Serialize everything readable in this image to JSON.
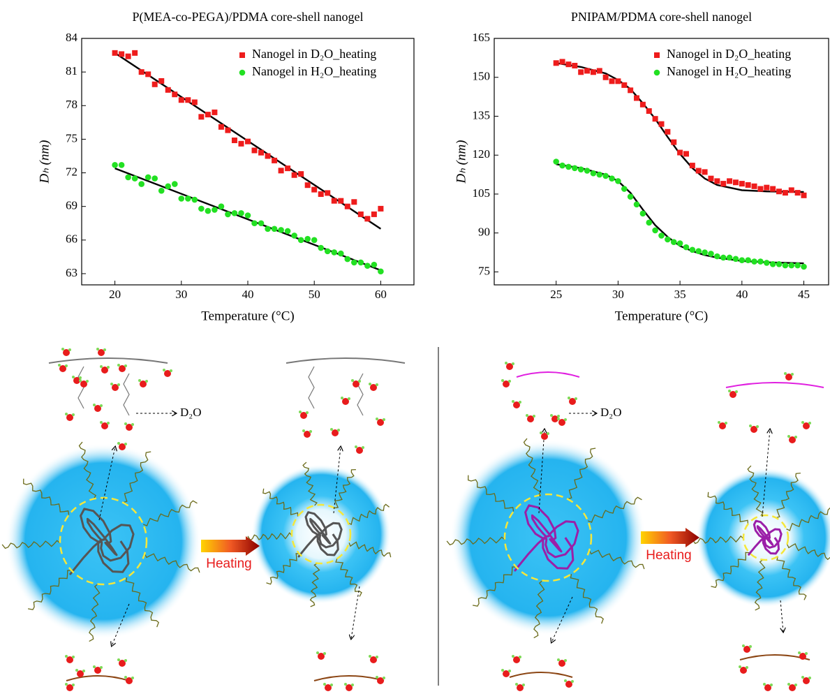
{
  "chart_data": [
    {
      "type": "scatter",
      "title": "P(MEA-co-PEGA)/PDMA core-shell nanogel",
      "x_label": "Temperature (°C)",
      "y_label": "Dₕ (nm)",
      "xlim": [
        15,
        65
      ],
      "xticks": [
        20,
        30,
        40,
        50,
        60
      ],
      "ylim": [
        62,
        84
      ],
      "yticks": [
        63,
        66,
        69,
        72,
        75,
        78,
        81,
        84
      ],
      "legend": "top-right",
      "series": [
        {
          "name": "Nanogel in D₂O_heating",
          "color": "#ee1c1c",
          "marker": "square",
          "x": [
            20,
            21,
            22,
            23,
            24,
            25,
            26,
            27,
            28,
            29,
            30,
            31,
            32,
            33,
            34,
            35,
            36,
            37,
            38,
            39,
            40,
            41,
            42,
            43,
            44,
            45,
            46,
            47,
            48,
            49,
            50,
            51,
            52,
            53,
            54,
            55,
            56,
            57,
            58,
            59,
            60
          ],
          "values": [
            82.7,
            82.6,
            82.4,
            82.7,
            81.0,
            80.8,
            79.9,
            80.2,
            79.4,
            79.0,
            78.5,
            78.5,
            78.3,
            77.0,
            77.2,
            77.4,
            76.1,
            75.8,
            74.9,
            74.6,
            74.8,
            74.0,
            73.8,
            73.5,
            73.1,
            72.2,
            72.4,
            71.8,
            71.9,
            70.9,
            70.5,
            70.1,
            70.2,
            69.5,
            69.5,
            69.0,
            69.4,
            68.3,
            67.9,
            68.3,
            68.8
          ]
        },
        {
          "name": "Nanogel in H₂O_heating",
          "color": "#22e022",
          "marker": "circle",
          "x": [
            20,
            21,
            22,
            23,
            24,
            25,
            26,
            27,
            28,
            29,
            30,
            31,
            32,
            33,
            34,
            35,
            36,
            37,
            38,
            39,
            40,
            41,
            42,
            43,
            44,
            45,
            46,
            47,
            48,
            49,
            50,
            51,
            52,
            53,
            54,
            55,
            56,
            57,
            58,
            59,
            60
          ],
          "values": [
            72.7,
            72.7,
            71.6,
            71.5,
            71.0,
            71.6,
            71.5,
            70.4,
            70.8,
            71.0,
            69.7,
            69.7,
            69.6,
            68.8,
            68.6,
            68.7,
            69.0,
            68.3,
            68.4,
            68.4,
            68.2,
            67.5,
            67.5,
            67.0,
            67.0,
            66.9,
            66.8,
            66.4,
            66.0,
            66.1,
            66.0,
            65.3,
            65.0,
            64.9,
            64.8,
            64.3,
            64.0,
            64.0,
            63.7,
            63.8,
            63.2
          ]
        }
      ],
      "fits": [
        {
          "color": "#000000",
          "x": [
            20,
            60
          ],
          "values": [
            82.7,
            67.0
          ]
        },
        {
          "color": "#000000",
          "x": [
            20,
            60
          ],
          "values": [
            72.4,
            63.3
          ]
        }
      ]
    },
    {
      "type": "scatter",
      "title": "PNIPAM/PDMA core-shell nanogel",
      "x_label": "Temperature (°C)",
      "y_label": "Dₕ (nm)",
      "xlim": [
        20,
        47
      ],
      "xticks": [
        25,
        30,
        35,
        40,
        45
      ],
      "ylim": [
        70,
        165
      ],
      "yticks": [
        75,
        90,
        105,
        120,
        135,
        150,
        165
      ],
      "legend": "top-right",
      "series": [
        {
          "name": "Nanogel in D₂O_heating",
          "color": "#ee1c1c",
          "marker": "square",
          "x": [
            25,
            25.5,
            26,
            26.5,
            27,
            27.5,
            28,
            28.5,
            29,
            29.5,
            30,
            30.5,
            31,
            31.5,
            32,
            32.5,
            33,
            33.5,
            34,
            34.5,
            35,
            35.5,
            36,
            36.5,
            37,
            37.5,
            38,
            38.5,
            39,
            39.5,
            40,
            40.5,
            41,
            41.5,
            42,
            42.5,
            43,
            43.5,
            44,
            44.5,
            45
          ],
          "values": [
            155.5,
            156,
            155,
            154.5,
            152,
            152.5,
            152,
            152.5,
            150,
            148.5,
            148.5,
            147,
            145,
            142,
            139.5,
            137,
            134,
            132,
            129,
            125,
            121,
            120.5,
            116,
            114,
            113.5,
            111,
            110,
            109,
            110,
            109.5,
            109,
            108.5,
            108,
            107,
            107.5,
            107,
            106,
            105.5,
            106.5,
            105.5,
            104.5
          ]
        },
        {
          "name": "Nanogel in H₂O_heating",
          "color": "#22e022",
          "marker": "circle",
          "x": [
            25,
            25.5,
            26,
            26.5,
            27,
            27.5,
            28,
            28.5,
            29,
            29.5,
            30,
            30.5,
            31,
            31.5,
            32,
            32.5,
            33,
            33.5,
            34,
            34.5,
            35,
            35.5,
            36,
            36.5,
            37,
            37.5,
            38,
            38.5,
            39,
            39.5,
            40,
            40.5,
            41,
            41.5,
            42,
            42.5,
            43,
            43.5,
            44,
            44.5,
            45
          ],
          "values": [
            117.5,
            116,
            115.5,
            115,
            114.5,
            114,
            113,
            112.5,
            112,
            111,
            110,
            107,
            104,
            101,
            97.5,
            94,
            91,
            89,
            87.5,
            86.5,
            86,
            84.5,
            83.5,
            83,
            82.5,
            82,
            81,
            80.5,
            80.5,
            80,
            79.5,
            79.5,
            79,
            79,
            78.5,
            78,
            78,
            77.5,
            77.5,
            77.5,
            77
          ]
        }
      ],
      "fits": [
        {
          "color": "#000000",
          "x": [
            25,
            27,
            29,
            30,
            31,
            32,
            33,
            34,
            35,
            36,
            37,
            38,
            40,
            42,
            45
          ],
          "values": [
            155.5,
            154,
            151.5,
            149,
            145.5,
            140,
            134,
            127,
            120.5,
            115,
            111,
            108.5,
            106.5,
            106,
            105.8
          ]
        },
        {
          "color": "#000000",
          "x": [
            25,
            27,
            29,
            30,
            31,
            32,
            33,
            34,
            35,
            36,
            37,
            38,
            40,
            42,
            45
          ],
          "values": [
            116.5,
            115,
            112.5,
            110,
            105.5,
            99,
            93,
            88.5,
            85,
            83,
            81.5,
            80.5,
            79.2,
            78.7,
            78.3
          ]
        }
      ]
    }
  ],
  "diagram": {
    "solvent_labels": [
      "D₂O",
      "D₂O"
    ],
    "arrow_labels": [
      "Heating",
      "Heating"
    ]
  }
}
